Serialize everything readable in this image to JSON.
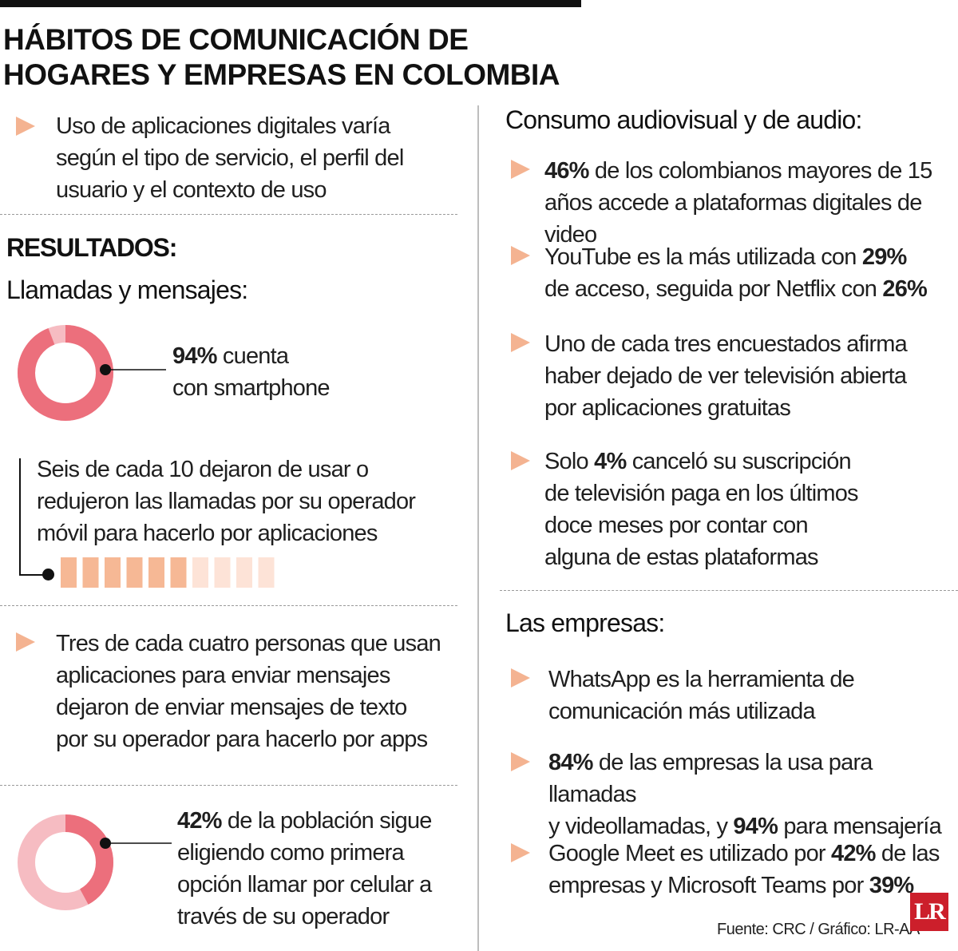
{
  "title": {
    "line1": "HÁBITOS DE COMUNICACIÓN DE",
    "line2": "HOGARES Y EMPRESAS EN COLOMBIA"
  },
  "intro": {
    "lines": [
      "Uso de aplicaciones digitales varía",
      "según el tipo de servicio, el perfil del",
      "usuario y el contexto de uso"
    ]
  },
  "resultados": {
    "label": "RESULTADOS:"
  },
  "llamadas": {
    "heading": "Llamadas y mensajes:",
    "smartphone": {
      "pct": "94%",
      "pct_value": 94,
      "line1_rest": " cuenta",
      "line2": "con smartphone",
      "color": "#ec6f7c",
      "rest_color": "#f6bcc2"
    },
    "seis": {
      "lines": [
        "Seis de cada 10 dejaron de usar o",
        "reduJeron las llamadas por su operador",
        "móvil para hacerlo por aplicaciones"
      ],
      "filled": 6,
      "total": 10,
      "fill_color": "#f6b895",
      "empty_color": "#fde3d7"
    },
    "tres": {
      "lines": [
        "Tres de cada cuatro personas que usan",
        "aplicaciones para enviar mensajes",
        "dejaron de enviar mensajes de texto",
        "por su operador para hacerlo por apps"
      ]
    },
    "poblacion": {
      "pct": "42%",
      "pct_value": 42,
      "line1_rest": " de la población sigue",
      "lines": [
        "eligiendo como primera",
        "opción llamar por celular a",
        "través de su operador"
      ],
      "color": "#ec6f7c",
      "rest_color": "#f6bcc2"
    }
  },
  "audiovisual": {
    "heading": "Consumo audiovisual y de audio:",
    "item1": {
      "pct": "46%",
      "line1_rest": " de los colombianos mayores de 15",
      "line2": "años accede a plataformas digitales de video"
    },
    "item2": {
      "line1_pre": "YouTube es la más utilizada con ",
      "pct1": "29%",
      "line2_pre": "de acceso, seguida por Netflix con ",
      "pct2": "26%"
    },
    "item3": {
      "lines": [
        "Uno de cada tres encuestados afirma",
        "haber dejado de ver televisión abierta",
        "por aplicaciones gratuitas"
      ]
    },
    "item4": {
      "pre": "Solo ",
      "pct": "4%",
      "line1_rest": " canceló su suscripción",
      "lines": [
        "de televisión paga en los últimos",
        "doce meses por contar con",
        "alguna de estas plataformas"
      ]
    }
  },
  "empresas": {
    "heading": "Las empresas:",
    "item1": {
      "lines": [
        "WhatsApp es la herramienta de",
        "comunicación más utilizada"
      ]
    },
    "item2": {
      "pct1": "84%",
      "line1_rest": " de las empresas la usa para llamadas",
      "line2_pre": "y videollamadas, y ",
      "pct2": "94%",
      "line2_rest": " para mensajería"
    },
    "item3": {
      "line1_pre": "Google Meet es utilizado por ",
      "pct1": "42%",
      "line1_rest": " de las",
      "line2_pre": "empresas y Microsoft Teams por ",
      "pct2": "39%"
    }
  },
  "source": "Fuente: CRC / Gráfico: LR-AA",
  "logo": "LR",
  "colors": {
    "triangle": "#f4b391",
    "accent": "#ec6f7c",
    "logo_bg": "#cc1f2b"
  }
}
